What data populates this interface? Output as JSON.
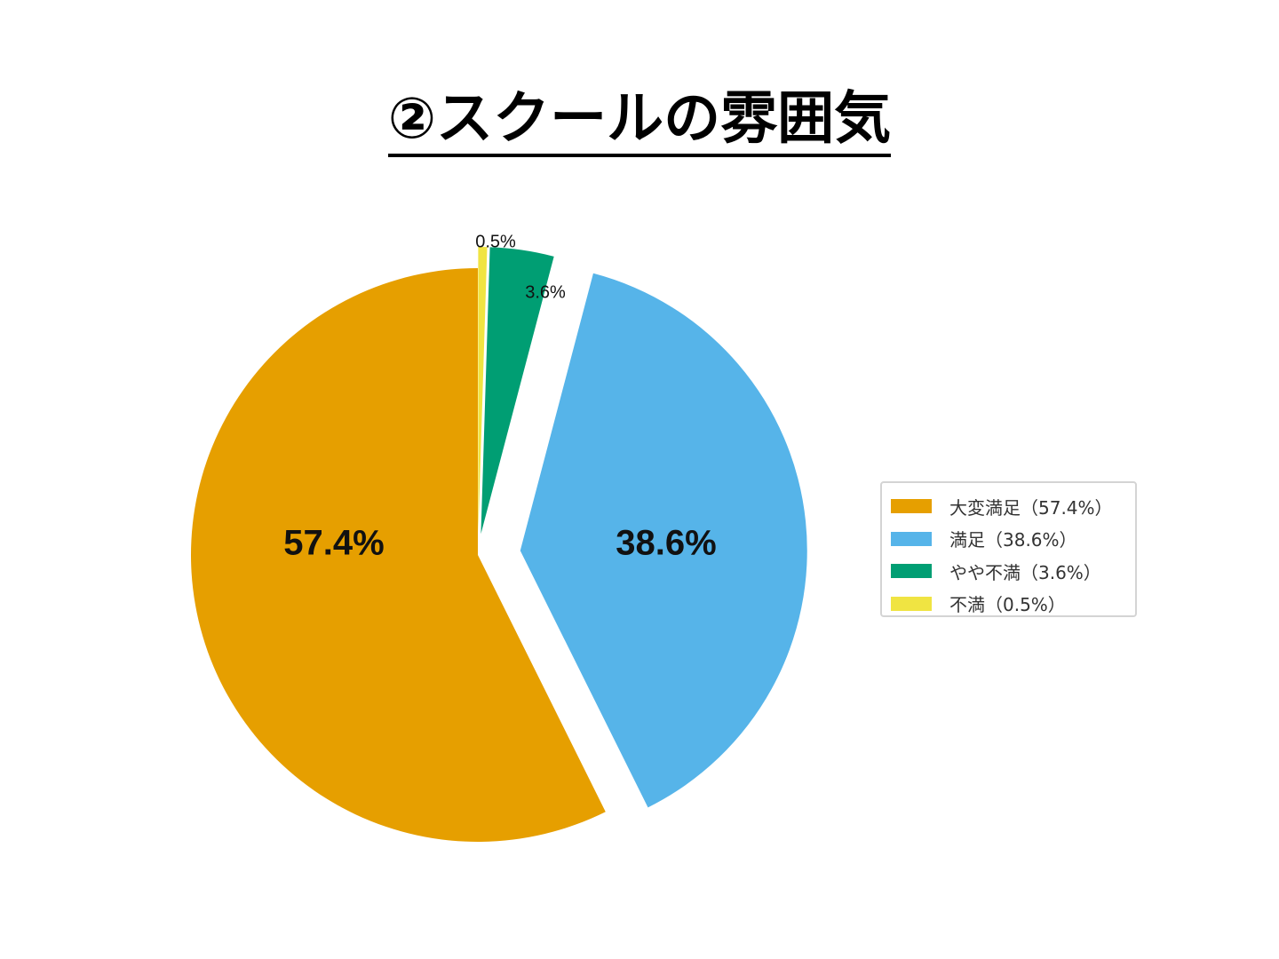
{
  "title": "②スクールの雰囲気",
  "chart_data": {
    "type": "pie",
    "title": "②スクールの雰囲気",
    "start": "top",
    "direction": "counterclockwise",
    "slices": [
      {
        "label": "大変満足",
        "value": 57.4,
        "display": "57.4%",
        "legend": "大変満足（57.4%）",
        "color": "#E69F00",
        "exploded": false,
        "label_style": "big-inside"
      },
      {
        "label": "満足",
        "value": 38.6,
        "display": "38.6%",
        "legend": "満足（38.6%）",
        "color": "#56B4E9",
        "exploded": true,
        "label_style": "big-inside"
      },
      {
        "label": "やや不満",
        "value": 3.6,
        "display": "3.6%",
        "legend": "やや不満（3.6%）",
        "color": "#009E73",
        "exploded": true,
        "label_style": "small-outside"
      },
      {
        "label": "不満",
        "value": 0.5,
        "display": "0.5%",
        "legend": "不満（0.5%）",
        "color": "#F0E442",
        "exploded": true,
        "label_style": "small-outside"
      }
    ],
    "legend_position": "right"
  }
}
